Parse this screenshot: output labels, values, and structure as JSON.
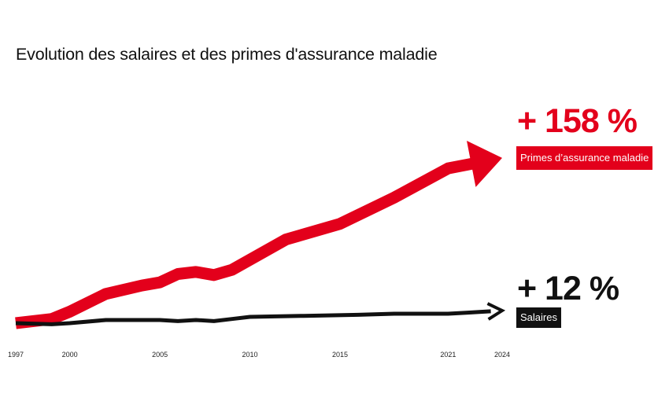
{
  "chart_data": {
    "type": "line",
    "title": "Evolution des salaires et des primes d'assurance maladie",
    "x_ticks": [
      "1997",
      "2000",
      "2005",
      "2010",
      "2015",
      "2021",
      "2024"
    ],
    "x_range": [
      1997,
      2024
    ],
    "ylim": [
      0,
      160
    ],
    "y_unit": "% vs 1997",
    "grid": false,
    "series": [
      {
        "name": "Primes d'assurance maladie",
        "color": "#e3001b",
        "change_label": "+ 158 %",
        "x": [
          1997,
          1999,
          2000,
          2002,
          2004,
          2005,
          2006,
          2007,
          2008,
          2009,
          2012,
          2015,
          2018,
          2021,
          2024
        ],
        "y": [
          0,
          4,
          11,
          28,
          36,
          39,
          47,
          49,
          46,
          51,
          80,
          95,
          120,
          148,
          158
        ]
      },
      {
        "name": "Salaires",
        "color": "#111111",
        "change_label": "+ 12 %",
        "x": [
          1997,
          1999,
          2000,
          2002,
          2005,
          2006,
          2007,
          2008,
          2009,
          2010,
          2013,
          2016,
          2018,
          2021,
          2022,
          2024
        ],
        "y": [
          0,
          -1,
          0,
          3,
          3,
          2,
          3,
          2,
          4,
          6,
          7,
          8,
          9,
          9,
          10,
          12
        ]
      }
    ]
  },
  "labels": {
    "primes_change": "+ 158 %",
    "primes_name": "Primes d’assurance maladie",
    "salaires_change": "+ 12 %",
    "salaires_name": "Salaires"
  }
}
